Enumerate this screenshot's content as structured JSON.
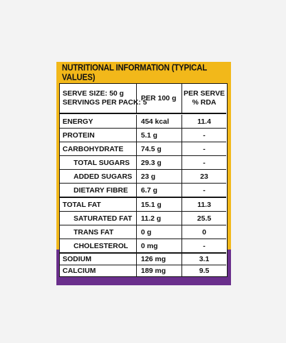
{
  "title": "NUTRITIONAL INFORMATION (TYPICAL VALUES)",
  "colors": {
    "pack_yellow": "#f2b81a",
    "pack_purple": "#6a2f8c",
    "table_bg": "#ffffff",
    "text": "#111111"
  },
  "header_row": {
    "serve_size": "SERVE SIZE: 50 g",
    "servings": "SERVINGS PER PACK: 5",
    "per_100g": "PER 100 g",
    "per_serve_line1": "PER SERVE",
    "per_serve_line2": "% RDA"
  },
  "rows": [
    {
      "label": "ENERGY",
      "per100": "454 kcal",
      "rda": "11.4"
    },
    {
      "label": "PROTEIN",
      "per100": "5.1 g",
      "rda": "-"
    },
    {
      "label": "CARBOHYDRATE",
      "per100": "74.5 g",
      "rda": "-"
    },
    {
      "label": "TOTAL SUGARS",
      "per100": "29.3 g",
      "rda": "-"
    },
    {
      "label": "ADDED SUGARS",
      "per100": "23 g",
      "rda": "23"
    },
    {
      "label": "DIETARY FIBRE",
      "per100": "6.7 g",
      "rda": "-"
    },
    {
      "label": "TOTAL FAT",
      "per100": "15.1 g",
      "rda": "11.3"
    },
    {
      "label": "SATURATED FAT",
      "per100": "11.2 g",
      "rda": "25.5"
    },
    {
      "label": "TRANS FAT",
      "per100": "0 g",
      "rda": "0"
    },
    {
      "label": "CHOLESTEROL",
      "per100": "0 mg",
      "rda": "-"
    },
    {
      "label": "SODIUM",
      "per100": "126 mg",
      "rda": "3.1"
    },
    {
      "label": "CALCIUM",
      "per100": "189 mg",
      "rda": "9.5"
    }
  ]
}
